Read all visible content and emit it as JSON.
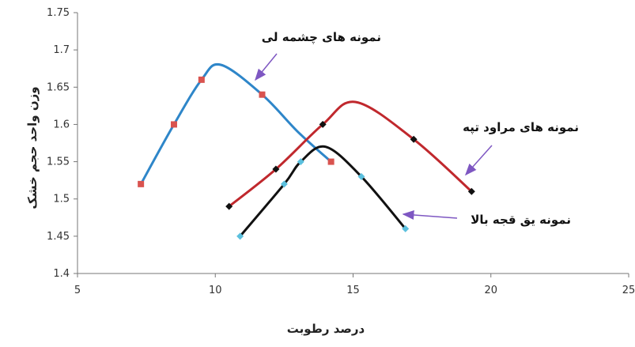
{
  "chart_data": {
    "type": "line",
    "xlabel": "درصد رطوبت",
    "ylabel": "وزن واحد حجم خشک",
    "xlim": [
      5,
      25
    ],
    "ylim": [
      1.4,
      1.75
    ],
    "x_ticks": [
      5,
      10,
      15,
      20,
      25
    ],
    "x_tick_labels": [
      "5",
      "10",
      "15",
      "20",
      "25"
    ],
    "y_ticks": [
      1.4,
      1.45,
      1.5,
      1.55,
      1.6,
      1.65,
      1.7,
      1.75
    ],
    "y_tick_labels": [
      "1.4",
      "1.45",
      "1.5",
      "1.55",
      "1.6",
      "1.65",
      "1.7",
      "1.75"
    ],
    "grid": false,
    "series": [
      {
        "name": "نمونه های چشمه لی",
        "color": "#2e86c9",
        "marker_color": "#d9534f",
        "marker": "square",
        "points": [
          [
            7.3,
            1.52
          ],
          [
            8.5,
            1.6
          ],
          [
            9.5,
            1.66
          ],
          [
            11.7,
            1.64
          ],
          [
            14.2,
            1.55
          ]
        ],
        "curve": [
          [
            7.3,
            1.52
          ],
          [
            8.5,
            1.6
          ],
          [
            9.5,
            1.66
          ],
          [
            10.2,
            1.68
          ],
          [
            11.7,
            1.64
          ],
          [
            13,
            1.59
          ],
          [
            14.2,
            1.55
          ]
        ]
      },
      {
        "name": "نمونه های مراود تپه",
        "color": "#c0282d",
        "marker_color": "#111111",
        "marker": "diamond",
        "points": [
          [
            10.5,
            1.49
          ],
          [
            12.2,
            1.54
          ],
          [
            13.9,
            1.6
          ],
          [
            17.2,
            1.58
          ],
          [
            19.3,
            1.51
          ]
        ],
        "curve": [
          [
            10.5,
            1.49
          ],
          [
            12.2,
            1.54
          ],
          [
            13.9,
            1.6
          ],
          [
            15.1,
            1.63
          ],
          [
            17.2,
            1.58
          ],
          [
            19.3,
            1.51
          ]
        ]
      },
      {
        "name": "نمونه یق قجه بالا",
        "color": "#111111",
        "marker_color": "#5bc0de",
        "marker": "diamond",
        "points": [
          [
            10.9,
            1.45
          ],
          [
            12.5,
            1.52
          ],
          [
            13.1,
            1.55
          ],
          [
            15.3,
            1.53
          ],
          [
            16.9,
            1.46
          ]
        ],
        "curve": [
          [
            10.9,
            1.45
          ],
          [
            12.5,
            1.52
          ],
          [
            13.1,
            1.55
          ],
          [
            14.0,
            1.57
          ],
          [
            15.3,
            1.53
          ],
          [
            16.9,
            1.46
          ]
        ]
      }
    ],
    "annotations": [
      {
        "text": "نمونه های چشمه لی",
        "series": 0,
        "arrow_color": "#7e57c2"
      },
      {
        "text": "نمونه های مراود تپه",
        "series": 1,
        "arrow_color": "#7e57c2"
      },
      {
        "text": "نمونه یق قجه بالا",
        "series": 2,
        "arrow_color": "#7e57c2"
      }
    ]
  }
}
